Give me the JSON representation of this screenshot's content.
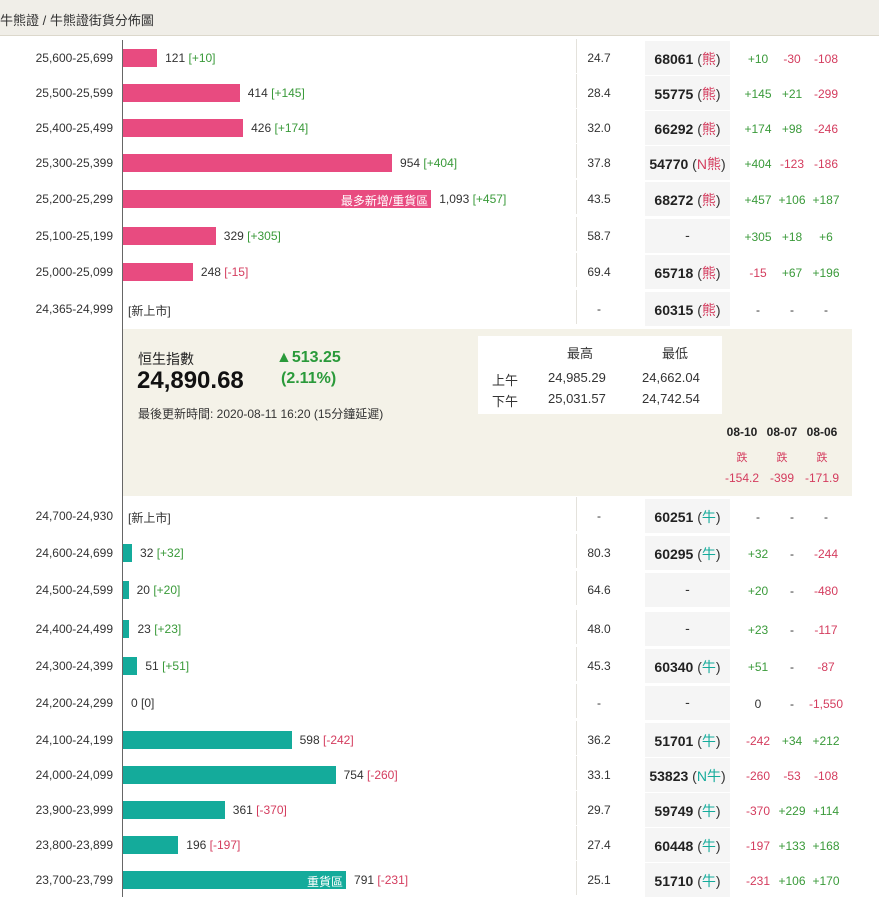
{
  "breadcrumb": {
    "text": "牛熊證 / 牛熊證街貨分佈圖"
  },
  "bear_rows": [
    {
      "range": "25,600-25,699",
      "qty": "121",
      "qty_chg": "[+10]",
      "chg_sign": "pos",
      "ratio": "24.7",
      "warrant_code": "68061",
      "warrant_tag": "熊",
      "d1": "+10",
      "d2": "-30",
      "d3": "-108",
      "bar_value": 121
    },
    {
      "range": "25,500-25,599",
      "qty": "414",
      "qty_chg": "[+145]",
      "chg_sign": "pos",
      "ratio": "28.4",
      "warrant_code": "55775",
      "warrant_tag": "熊",
      "d1": "+145",
      "d2": "+21",
      "d3": "-299",
      "bar_value": 414
    },
    {
      "range": "25,400-25,499",
      "qty": "426",
      "qty_chg": "[+174]",
      "chg_sign": "pos",
      "ratio": "32.0",
      "warrant_code": "66292",
      "warrant_tag": "熊",
      "d1": "+174",
      "d2": "+98",
      "d3": "-246",
      "bar_value": 426
    },
    {
      "range": "25,300-25,399",
      "qty": "954",
      "qty_chg": "[+404]",
      "chg_sign": "pos",
      "ratio": "37.8",
      "warrant_code": "54770",
      "warrant_tag": "N熊",
      "d1": "+404",
      "d2": "-123",
      "d3": "-186",
      "bar_value": 954
    },
    {
      "range": "25,200-25,299",
      "qty": "1,093",
      "qty_chg": "[+457]",
      "chg_sign": "pos",
      "ratio": "43.5",
      "warrant_code": "68272",
      "warrant_tag": "熊",
      "d1": "+457",
      "d2": "+106",
      "d3": "+187",
      "bar_value": 1093,
      "bar_label": "最多新增/重貨區"
    },
    {
      "range": "25,100-25,199",
      "qty": "329",
      "qty_chg": "[+305]",
      "chg_sign": "pos",
      "ratio": "58.7",
      "warrant_code": "",
      "warrant_tag": "",
      "d1": "+305",
      "d2": "+18",
      "d3": "+6",
      "bar_value": 329
    },
    {
      "range": "25,000-25,099",
      "qty": "248",
      "qty_chg": "[-15]",
      "chg_sign": "neg",
      "ratio": "69.4",
      "warrant_code": "65718",
      "warrant_tag": "熊",
      "d1": "-15",
      "d2": "+67",
      "d3": "+196",
      "bar_value": 248
    },
    {
      "range": "24,365-24,999",
      "new_listed": "[新上市]",
      "ratio": "-",
      "warrant_code": "60315",
      "warrant_tag": "熊",
      "d1": "-",
      "d2": "-",
      "d3": "-",
      "bar_value": 0
    }
  ],
  "index": {
    "name": "恒生指數",
    "value": "24,890.68",
    "change": "▲513.25",
    "change_pct": "(2.11%)",
    "update": "最後更新時間: 2020-08-11 16:20 (15分鐘延遲)",
    "hl_header_high": "最高",
    "hl_header_low": "最低",
    "am_label": "上午",
    "am_high": "24,985.29",
    "am_low": "24,662.04",
    "pm_label": "下午",
    "pm_high": "25,031.57",
    "pm_low": "24,742.54",
    "days": [
      {
        "date": "08-10",
        "dir": "跌",
        "val": "-154.2"
      },
      {
        "date": "08-07",
        "dir": "跌",
        "val": "-399"
      },
      {
        "date": "08-06",
        "dir": "跌",
        "val": "-171.9"
      }
    ]
  },
  "bull_rows": [
    {
      "range": "24,700-24,930",
      "new_listed": "[新上市]",
      "ratio": "-",
      "warrant_code": "60251",
      "warrant_tag": "牛",
      "d1": "-",
      "d2": "-",
      "d3": "-",
      "bar_value": 0
    },
    {
      "range": "24,600-24,699",
      "qty": "32",
      "qty_chg": "[+32]",
      "chg_sign": "pos",
      "ratio": "80.3",
      "warrant_code": "60295",
      "warrant_tag": "牛",
      "d1": "+32",
      "d2": "-",
      "d3": "-244",
      "bar_value": 32
    },
    {
      "range": "24,500-24,599",
      "qty": "20",
      "qty_chg": "[+20]",
      "chg_sign": "pos",
      "ratio": "64.6",
      "warrant_code": "",
      "warrant_tag": "",
      "d1": "+20",
      "d2": "-",
      "d3": "-480",
      "bar_value": 20
    },
    {
      "range": "24,400-24,499",
      "qty": "23",
      "qty_chg": "[+23]",
      "chg_sign": "pos",
      "ratio": "48.0",
      "warrant_code": "",
      "warrant_tag": "",
      "d1": "+23",
      "d2": "-",
      "d3": "-117",
      "bar_value": 23
    },
    {
      "range": "24,300-24,399",
      "qty": "51",
      "qty_chg": "[+51]",
      "chg_sign": "pos",
      "ratio": "45.3",
      "warrant_code": "60340",
      "warrant_tag": "牛",
      "d1": "+51",
      "d2": "-",
      "d3": "-87",
      "bar_value": 51
    },
    {
      "range": "24,200-24,299",
      "qty": "0",
      "qty_chg": "[0]",
      "chg_sign": "none",
      "ratio": "-",
      "warrant_code": "",
      "warrant_tag": "",
      "d1": "0",
      "d2": "-",
      "d3": "-1,550",
      "bar_value": 0
    },
    {
      "range": "24,100-24,199",
      "qty": "598",
      "qty_chg": "[-242]",
      "chg_sign": "neg",
      "ratio": "36.2",
      "warrant_code": "51701",
      "warrant_tag": "牛",
      "d1": "-242",
      "d2": "+34",
      "d3": "+212",
      "bar_value": 598
    },
    {
      "range": "24,000-24,099",
      "qty": "754",
      "qty_chg": "[-260]",
      "chg_sign": "neg",
      "ratio": "33.1",
      "warrant_code": "53823",
      "warrant_tag": "N牛",
      "d1": "-260",
      "d2": "-53",
      "d3": "-108",
      "bar_value": 754
    },
    {
      "range": "23,900-23,999",
      "qty": "361",
      "qty_chg": "[-370]",
      "chg_sign": "neg",
      "ratio": "29.7",
      "warrant_code": "59749",
      "warrant_tag": "牛",
      "d1": "-370",
      "d2": "+229",
      "d3": "+114",
      "bar_value": 361
    },
    {
      "range": "23,800-23,899",
      "qty": "196",
      "qty_chg": "[-197]",
      "chg_sign": "neg",
      "ratio": "27.4",
      "warrant_code": "60448",
      "warrant_tag": "牛",
      "d1": "-197",
      "d2": "+133",
      "d3": "+168",
      "bar_value": 196
    },
    {
      "range": "23,700-23,799",
      "qty": "791",
      "qty_chg": "[-231]",
      "chg_sign": "neg",
      "ratio": "25.1",
      "warrant_code": "51710",
      "warrant_tag": "牛",
      "d1": "-231",
      "d2": "+106",
      "d3": "+170",
      "bar_value": 791,
      "bar_label": "重貨區"
    }
  ],
  "colors": {
    "bear": "#e84b80",
    "bull": "#14ab9b",
    "positive": "#3a9a3a",
    "negative": "#d43c5e",
    "panel": "#f4f2e8"
  }
}
